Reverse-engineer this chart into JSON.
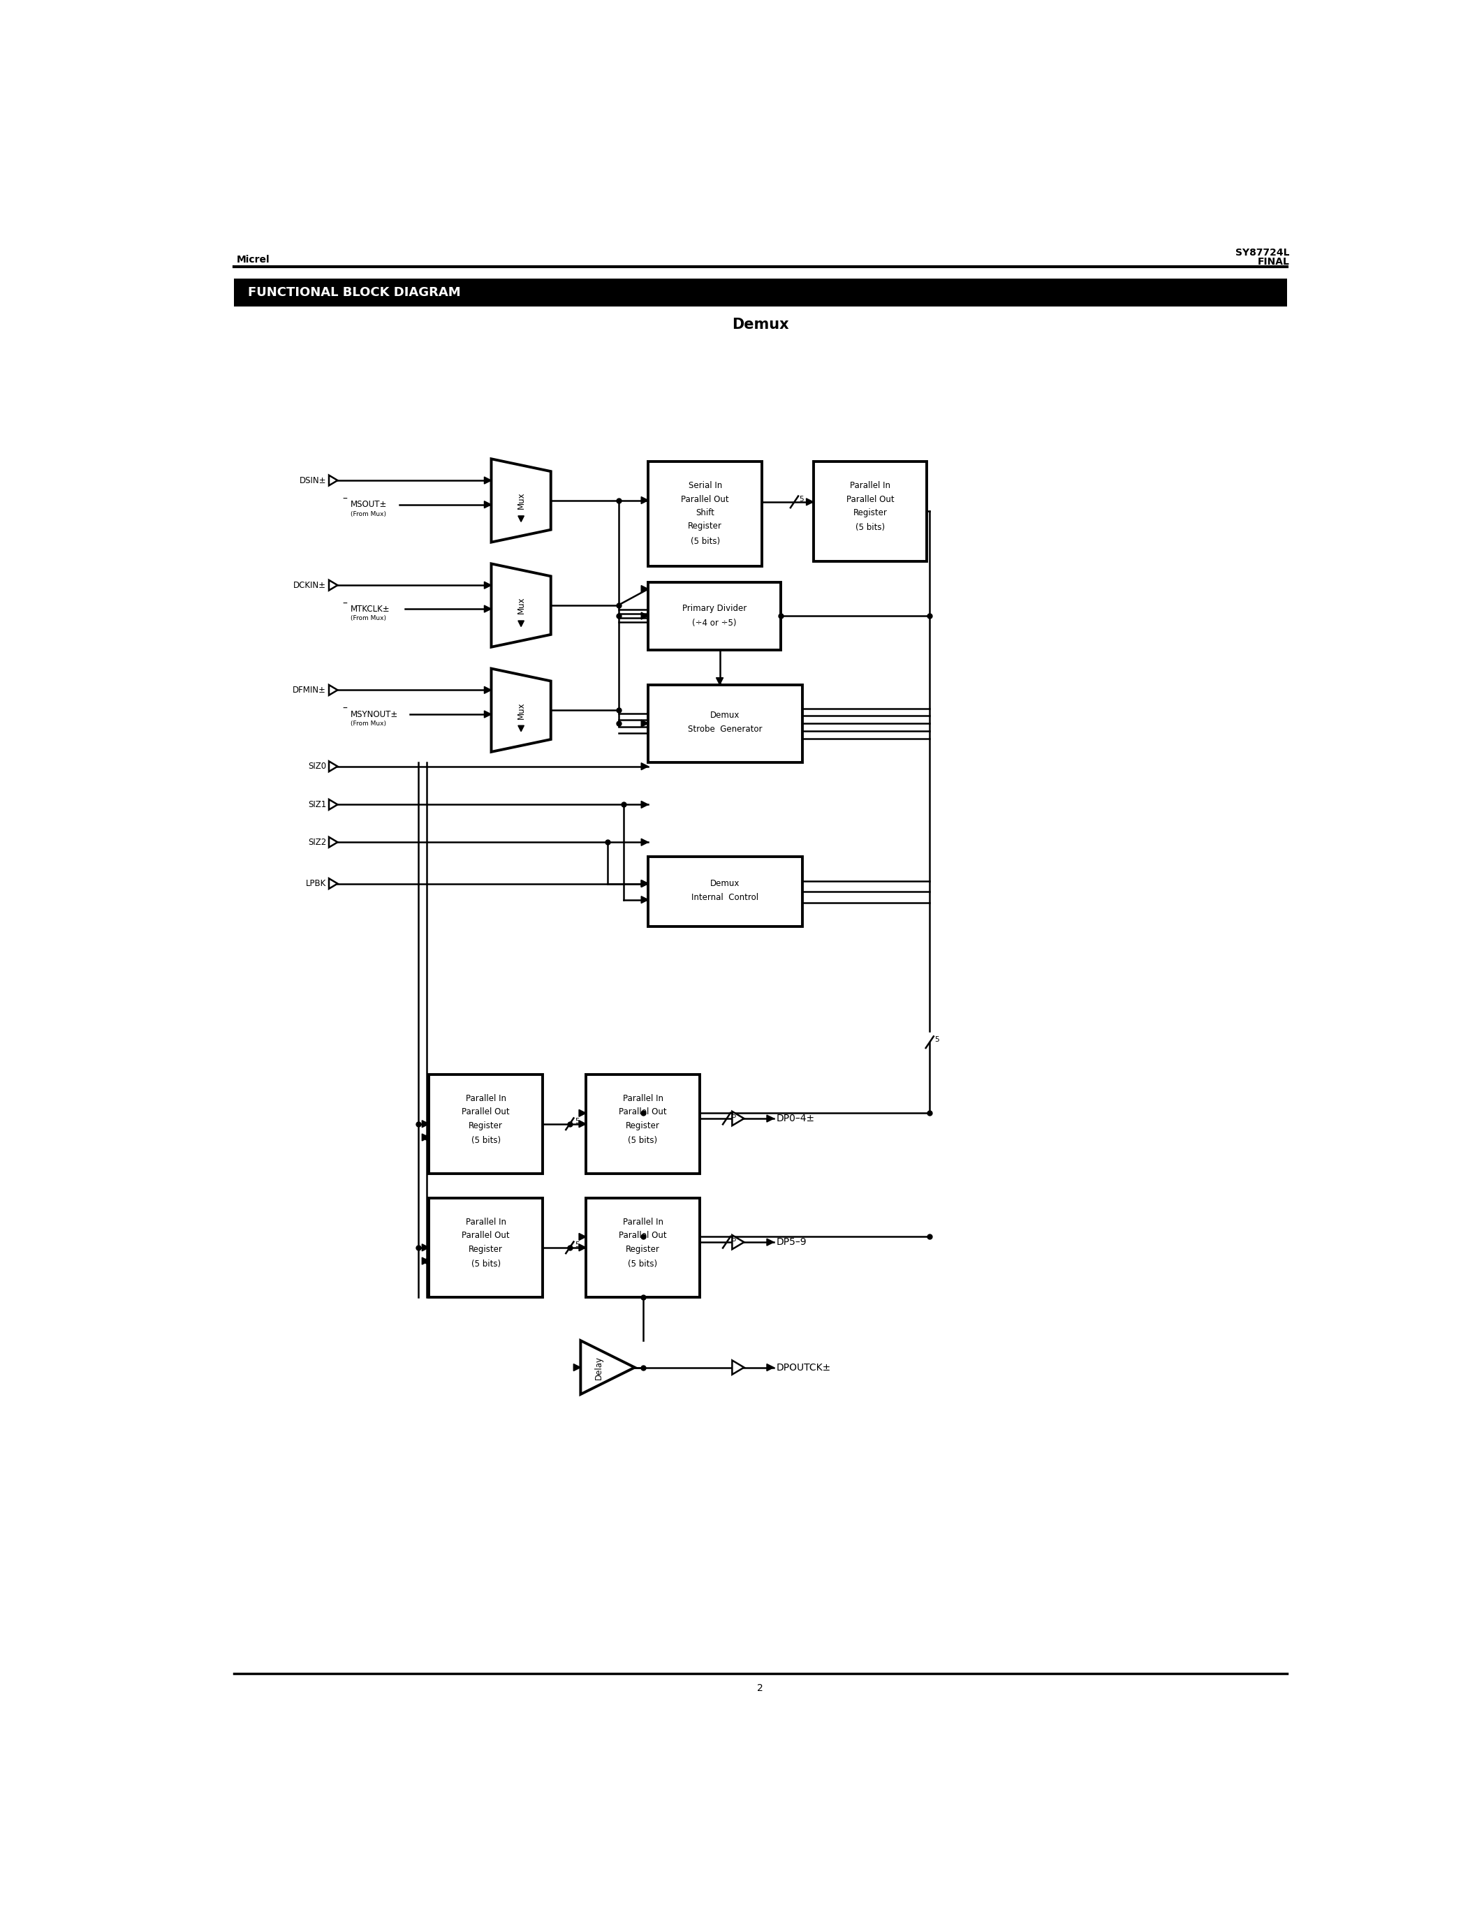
{
  "title_left": "Micrel",
  "title_right_line1": "SY87724L",
  "title_right_line2": "FINAL",
  "section_title": "FUNCTIONAL BLOCK DIAGRAM",
  "diagram_title": "Demux",
  "page_number": "2",
  "bg_color": "#ffffff",
  "line_color": "#000000"
}
